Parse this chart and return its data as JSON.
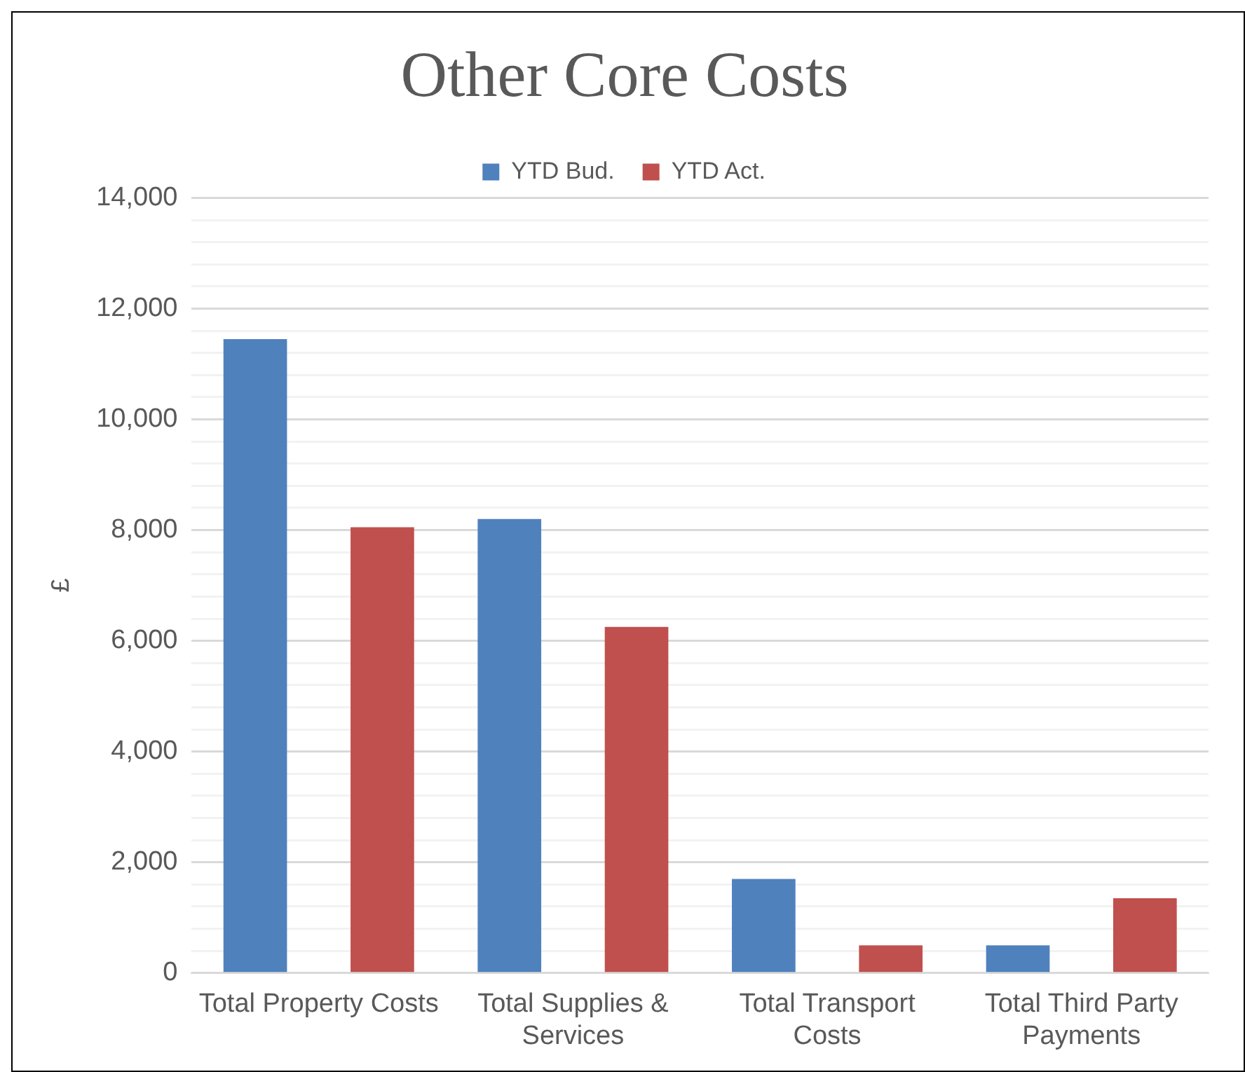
{
  "chart_data": {
    "type": "bar",
    "title": "Other Core Costs",
    "ylabel": "£",
    "categories": [
      "Total Property Costs",
      "Total Supplies & Services",
      "Total Transport Costs",
      "Total Third Party Payments"
    ],
    "series": [
      {
        "name": "YTD Bud.",
        "color": "#4f81bd",
        "values": [
          11450,
          8200,
          1700,
          500
        ]
      },
      {
        "name": "YTD Act.",
        "color": "#c0504d",
        "values": [
          8050,
          6250,
          500,
          1350
        ]
      }
    ],
    "ylim": [
      0,
      14000
    ],
    "yticks": [
      0,
      {
        "value": 400,
        "label": null
      },
      {
        "value": 800,
        "label": null
      },
      {
        "value": 1200,
        "label": null
      },
      {
        "value": 1600,
        "label": null
      },
      {
        "value": 2000,
        "label": "2,000"
      },
      {
        "value": 2400,
        "label": null
      },
      {
        "value": 2800,
        "label": null
      },
      {
        "value": 3200,
        "label": null
      },
      {
        "value": 3600,
        "label": null
      },
      {
        "value": 4000,
        "label": "4,000"
      },
      {
        "value": 4400,
        "label": null
      },
      {
        "value": 4800,
        "label": null
      },
      {
        "value": 5200,
        "label": null
      },
      {
        "value": 5600,
        "label": null
      },
      {
        "value": 6000,
        "label": "6,000"
      },
      {
        "value": 6400,
        "label": null
      },
      {
        "value": 6800,
        "label": null
      },
      {
        "value": 7200,
        "label": null
      },
      {
        "value": 7600,
        "label": null
      },
      {
        "value": 8000,
        "label": "8,000"
      },
      {
        "value": 8400,
        "label": null
      },
      {
        "value": 8800,
        "label": null
      },
      {
        "value": 9200,
        "label": null
      },
      {
        "value": 9600,
        "label": null
      },
      {
        "value": 10000,
        "label": "10,000"
      },
      {
        "value": 10400,
        "label": null
      },
      {
        "value": 10800,
        "label": null
      },
      {
        "value": 11200,
        "label": null
      },
      {
        "value": 11600,
        "label": null
      },
      {
        "value": 12000,
        "label": "12,000"
      },
      {
        "value": 12400,
        "label": null
      },
      {
        "value": 12800,
        "label": null
      },
      {
        "value": 13200,
        "label": null
      },
      {
        "value": 13600,
        "label": null
      },
      {
        "value": 14000,
        "label": "14,000"
      }
    ],
    "grid": "y",
    "legend": "top"
  }
}
